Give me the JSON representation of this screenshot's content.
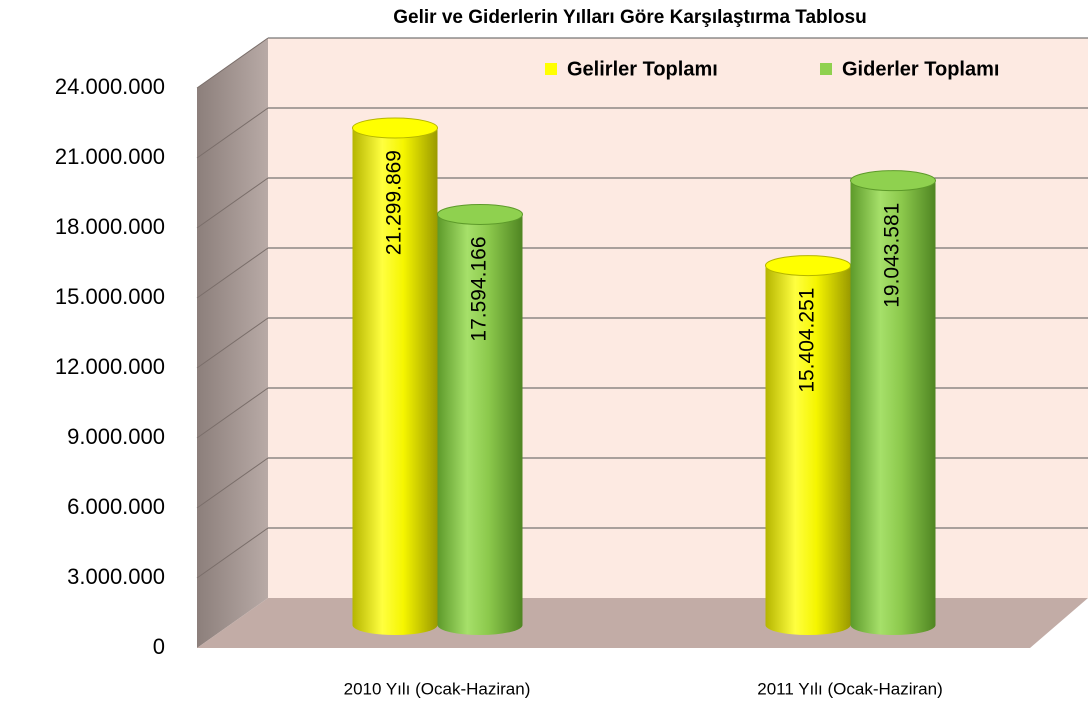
{
  "chart_data": {
    "type": "bar3d",
    "title": "Gelir ve Giderlerin Yılları Göre Karşılaştırma Tablosu",
    "categories": [
      "2010 Yılı (Ocak-Haziran)",
      "2011 Yılı (Ocak-Haziran)"
    ],
    "series": [
      {
        "name": "Gelirler Toplamı",
        "color": "#ffff00",
        "values": [
          21299869,
          15404251
        ],
        "value_labels": [
          "21.299.869",
          "15.404.251"
        ]
      },
      {
        "name": "Giderler Toplamı",
        "color": "#8fd14f",
        "values": [
          17594166,
          19043581
        ],
        "value_labels": [
          "17.594.166",
          "19.043.581"
        ]
      }
    ],
    "ylim": [
      0,
      24000000
    ],
    "yticks": [
      0,
      {
        "value": 3000000,
        "label": "3.000.000"
      },
      {
        "value": 6000000,
        "label": "6.000.000"
      },
      {
        "value": 9000000,
        "label": "9.000.000"
      },
      {
        "value": 12000000,
        "label": "12.000.000"
      },
      {
        "value": 15000000,
        "label": "15.000.000"
      },
      {
        "value": 18000000,
        "label": "18.000.000"
      },
      {
        "value": 21000000,
        "label": "21.000.000"
      },
      {
        "value": 24000000,
        "label": "24.000.000"
      }
    ],
    "grid": true,
    "legend": "top-right"
  }
}
